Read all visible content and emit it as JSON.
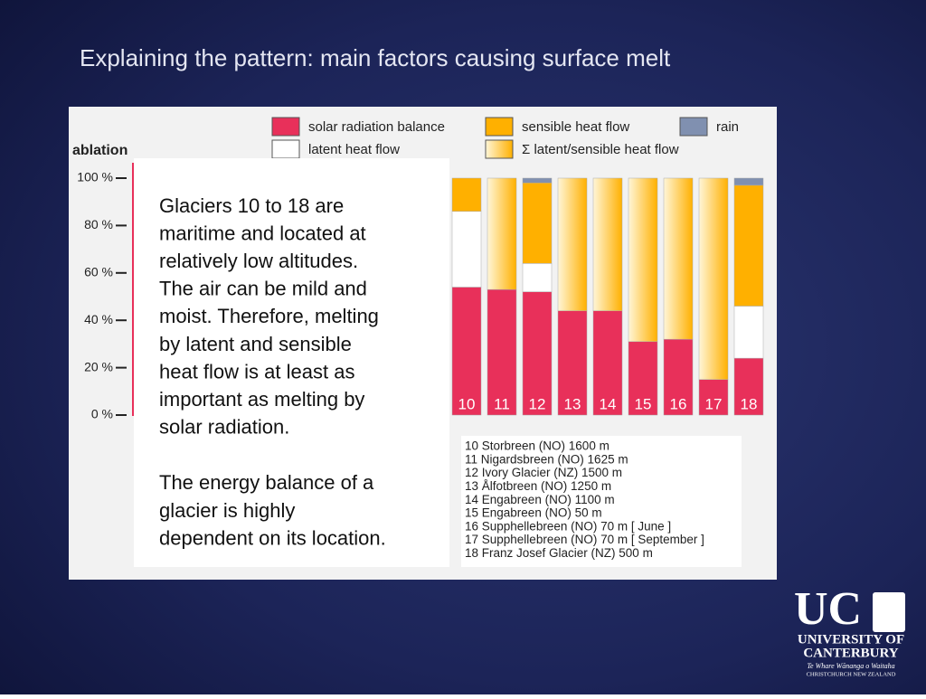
{
  "slide": {
    "title": "Explaining the pattern: main factors causing surface melt",
    "text_box": {
      "paragraphs": [
        [
          "Glaciers 10 to 18 are",
          "maritime and located at",
          "relatively low altitudes.",
          "The air can be mild and",
          "moist.  Therefore, melting",
          "by latent and sensible",
          "heat flow is at least as",
          "important as melting by",
          "solar radiation."
        ],
        [
          "The energy balance of a",
          "glacier is highly",
          "dependent  on its location."
        ]
      ]
    },
    "glacier_list": [
      "10  Storbreen (NO)  1600 m",
      "11  Nigardsbreen (NO)  1625 m",
      "12  Ivory Glacier (NZ)  1500 m",
      "13  Ålfotbreen (NO)  1250 m",
      "14  Engabreen (NO)  1100 m",
      "15  Engabreen (NO)  50 m",
      "16  Supphellebreen (NO)  70 m  [ June ]",
      "17  Supphellebreen (NO)  70 m  [ September ]",
      "18  Franz Josef Glacier (NZ)  500 m"
    ],
    "logo": {
      "mark": "UC",
      "line1": "UNIVERSITY OF",
      "line2": "CANTERBURY",
      "motto": "Te Whare Wānanga o Waitaha",
      "place": "CHRISTCHURCH NEW ZEALAND"
    }
  },
  "chart_data": {
    "type": "stacked-bar",
    "y_label": "ablation",
    "categories": [
      "10",
      "11",
      "12",
      "13",
      "14",
      "15",
      "16",
      "17",
      "18"
    ],
    "series": [
      {
        "name": "solar radiation balance",
        "color": "#e8305a",
        "values": [
          54,
          53,
          52,
          44,
          44,
          31,
          32,
          15,
          24
        ]
      },
      {
        "name": "latent heat flow",
        "color": "#ffffff",
        "values": [
          32,
          null,
          12,
          null,
          null,
          null,
          null,
          null,
          22
        ]
      },
      {
        "name": "sensible heat flow",
        "color": "#ffb000",
        "values": [
          14,
          null,
          34,
          null,
          null,
          null,
          null,
          null,
          51
        ]
      },
      {
        "name": "Σ latent/sensible heat flow",
        "color": [
          "#fff6d8",
          "#ffb000"
        ],
        "values": [
          null,
          47,
          null,
          56,
          56,
          69,
          68,
          85,
          null
        ]
      },
      {
        "name": "rain",
        "color": "#8090b0",
        "values": [
          null,
          null,
          2,
          null,
          null,
          null,
          null,
          null,
          3
        ]
      }
    ],
    "ylim": [
      0,
      100
    ],
    "yticks": [
      {
        "value": 0,
        "label": "0 %"
      },
      {
        "value": 20,
        "label": "20 %"
      },
      {
        "value": 40,
        "label": "40 %"
      },
      {
        "value": 60,
        "label": "60 %"
      },
      {
        "value": 80,
        "label": "80 %"
      },
      {
        "value": 100,
        "label": "100 %"
      }
    ]
  }
}
